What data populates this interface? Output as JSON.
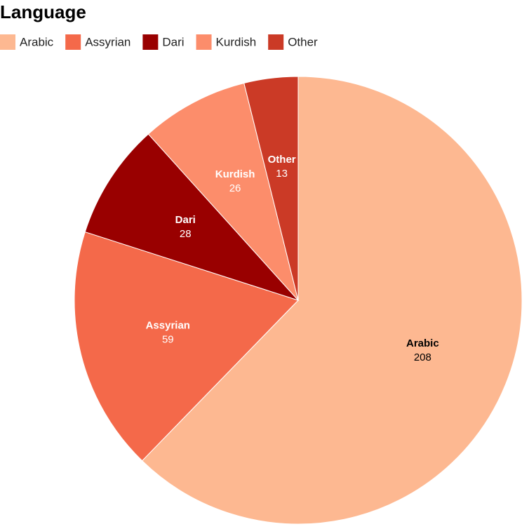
{
  "chart_data": {
    "type": "pie",
    "title": "Language",
    "categories": [
      "Arabic",
      "Assyrian",
      "Dari",
      "Kurdish",
      "Other"
    ],
    "values": [
      208,
      59,
      28,
      26,
      13
    ],
    "colors": [
      "#fdb891",
      "#f4694a",
      "#990000",
      "#fc8d6b",
      "#cb3a26"
    ]
  }
}
